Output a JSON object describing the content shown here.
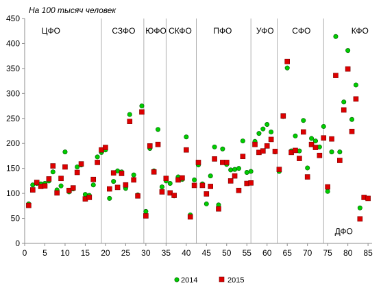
{
  "chart_data": {
    "type": "scatter",
    "unit_label": "На 100 тысяч человек",
    "xlim": [
      0,
      86
    ],
    "ylim": [
      0,
      450
    ],
    "x_ticks": [
      0,
      5,
      10,
      15,
      20,
      25,
      30,
      35,
      40,
      45,
      50,
      55,
      60,
      65,
      70,
      75,
      80,
      85
    ],
    "y_ticks": [
      0,
      50,
      100,
      150,
      200,
      250,
      300,
      350,
      400,
      450
    ],
    "grid": false,
    "legend_position": "bottom",
    "region_dividers": [
      19,
      29.5,
      35,
      42.5,
      56,
      62.5,
      74
    ],
    "regions": [
      {
        "name": "ЦФО",
        "x": 6.5,
        "y": 425
      },
      {
        "name": "СЗФО",
        "x": 24.5,
        "y": 425
      },
      {
        "name": "ЮФО",
        "x": 32.5,
        "y": 425
      },
      {
        "name": "СКФО",
        "x": 38.5,
        "y": 425
      },
      {
        "name": "ПФО",
        "x": 49,
        "y": 425
      },
      {
        "name": "УФО",
        "x": 59.5,
        "y": 425
      },
      {
        "name": "СФО",
        "x": 68.5,
        "y": 425
      },
      {
        "name": "КФО",
        "x": 83,
        "y": 425
      },
      {
        "name": "ДФО",
        "x": 79,
        "y": 24
      }
    ],
    "series": [
      {
        "name": "2014",
        "color": "#00cc00",
        "points": [
          [
            1,
            79
          ],
          [
            2,
            117
          ],
          [
            3,
            120
          ],
          [
            4,
            119
          ],
          [
            5,
            120
          ],
          [
            6,
            125
          ],
          [
            7,
            143
          ],
          [
            8,
            107
          ],
          [
            9,
            115
          ],
          [
            10,
            183
          ],
          [
            11,
            103
          ],
          [
            12,
            109
          ],
          [
            13,
            153
          ],
          [
            14,
            157
          ],
          [
            15,
            98
          ],
          [
            16,
            96
          ],
          [
            17,
            117
          ],
          [
            18,
            173
          ],
          [
            19,
            182
          ],
          [
            20,
            187
          ],
          [
            21,
            90
          ],
          [
            22,
            124
          ],
          [
            23,
            145
          ],
          [
            24,
            143
          ],
          [
            25,
            110
          ],
          [
            26,
            258
          ],
          [
            27,
            137
          ],
          [
            28,
            97
          ],
          [
            29,
            275
          ],
          [
            30,
            64
          ],
          [
            31,
            190
          ],
          [
            32,
            145
          ],
          [
            33,
            228
          ],
          [
            34,
            113
          ],
          [
            35,
            125
          ],
          [
            36,
            120
          ],
          [
            37,
            95
          ],
          [
            38,
            133
          ],
          [
            39,
            128
          ],
          [
            40,
            213
          ],
          [
            41,
            57
          ],
          [
            42,
            127
          ],
          [
            43,
            157
          ],
          [
            44,
            119
          ],
          [
            45,
            79
          ],
          [
            46,
            135
          ],
          [
            47,
            193
          ],
          [
            48,
            77
          ],
          [
            49,
            189
          ],
          [
            50,
            158
          ],
          [
            51,
            147
          ],
          [
            52,
            148
          ],
          [
            53,
            150
          ],
          [
            54,
            205
          ],
          [
            55,
            142
          ],
          [
            56,
            144
          ],
          [
            57,
            204
          ],
          [
            58,
            220
          ],
          [
            59,
            229
          ],
          [
            60,
            238
          ],
          [
            61,
            223
          ],
          [
            62,
            183
          ],
          [
            63,
            144
          ],
          [
            64,
            254
          ],
          [
            65,
            351
          ],
          [
            66,
            185
          ],
          [
            67,
            215
          ],
          [
            68,
            185
          ],
          [
            69,
            246
          ],
          [
            70,
            151
          ],
          [
            71,
            210
          ],
          [
            72,
            205
          ],
          [
            73,
            193
          ],
          [
            74,
            234
          ],
          [
            75,
            104
          ],
          [
            76,
            183
          ],
          [
            77,
            414
          ],
          [
            78,
            183
          ],
          [
            79,
            283
          ],
          [
            80,
            386
          ],
          [
            81,
            248
          ],
          [
            82,
            317
          ],
          [
            83,
            71
          ]
        ]
      },
      {
        "name": "2015",
        "color": "#dd0000",
        "points": [
          [
            1,
            76
          ],
          [
            2,
            107
          ],
          [
            3,
            122
          ],
          [
            4,
            114
          ],
          [
            5,
            115
          ],
          [
            6,
            129
          ],
          [
            7,
            155
          ],
          [
            8,
            101
          ],
          [
            9,
            130
          ],
          [
            10,
            153
          ],
          [
            11,
            106
          ],
          [
            12,
            111
          ],
          [
            13,
            142
          ],
          [
            14,
            159
          ],
          [
            15,
            89
          ],
          [
            16,
            92
          ],
          [
            17,
            128
          ],
          [
            18,
            162
          ],
          [
            19,
            187
          ],
          [
            20,
            192
          ],
          [
            21,
            109
          ],
          [
            22,
            141
          ],
          [
            23,
            112
          ],
          [
            24,
            140
          ],
          [
            25,
            117
          ],
          [
            26,
            244
          ],
          [
            27,
            127
          ],
          [
            28,
            95
          ],
          [
            29,
            263
          ],
          [
            30,
            55
          ],
          [
            31,
            195
          ],
          [
            32,
            143
          ],
          [
            33,
            198
          ],
          [
            34,
            103
          ],
          [
            35,
            130
          ],
          [
            36,
            101
          ],
          [
            37,
            96
          ],
          [
            38,
            127
          ],
          [
            39,
            131
          ],
          [
            40,
            187
          ],
          [
            41,
            53
          ],
          [
            42,
            116
          ],
          [
            43,
            162
          ],
          [
            44,
            116
          ],
          [
            45,
            99
          ],
          [
            46,
            114
          ],
          [
            47,
            169
          ],
          [
            48,
            69
          ],
          [
            49,
            162
          ],
          [
            50,
            162
          ],
          [
            51,
            125
          ],
          [
            52,
            135
          ],
          [
            53,
            106
          ],
          [
            54,
            174
          ],
          [
            55,
            120
          ],
          [
            56,
            121
          ],
          [
            57,
            198
          ],
          [
            58,
            182
          ],
          [
            59,
            185
          ],
          [
            60,
            195
          ],
          [
            61,
            208
          ],
          [
            62,
            184
          ],
          [
            63,
            148
          ],
          [
            64,
            255
          ],
          [
            65,
            364
          ],
          [
            66,
            182
          ],
          [
            67,
            186
          ],
          [
            68,
            170
          ],
          [
            69,
            223
          ],
          [
            70,
            133
          ],
          [
            71,
            198
          ],
          [
            72,
            192
          ],
          [
            73,
            176
          ],
          [
            74,
            211
          ],
          [
            75,
            113
          ],
          [
            76,
            209
          ],
          [
            77,
            336
          ],
          [
            78,
            166
          ],
          [
            79,
            267
          ],
          [
            80,
            349
          ],
          [
            81,
            224
          ],
          [
            82,
            289
          ],
          [
            83,
            49
          ],
          [
            84,
            92
          ],
          [
            85,
            90
          ]
        ]
      }
    ]
  }
}
